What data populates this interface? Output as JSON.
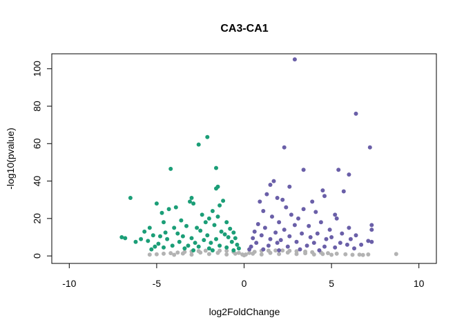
{
  "chart_data": {
    "type": "scatter",
    "title": "CA3-CA1",
    "xlabel": "log2FoldChange",
    "ylabel": "-log10(pvalue)",
    "xlim": [
      -11,
      11
    ],
    "ylim": [
      -4,
      108
    ],
    "xticks": [
      -10,
      -5,
      0,
      5,
      10
    ],
    "yticks": [
      0,
      20,
      40,
      60,
      80,
      100
    ],
    "grid": false,
    "legend": "none",
    "colors": {
      "down": "#1b9e77",
      "up": "#6a5fa8",
      "ns": "#b3b3b3"
    },
    "series": [
      {
        "group": "down",
        "points": [
          [
            -2.1,
            63.5
          ],
          [
            -2.6,
            59.5
          ],
          [
            -4.2,
            46.5
          ],
          [
            -1.6,
            47.0
          ],
          [
            -1.5,
            37.0
          ],
          [
            -1.6,
            36.0
          ],
          [
            -6.5,
            31.0
          ],
          [
            -3.0,
            31.0
          ],
          [
            -3.1,
            29.0
          ],
          [
            -2.9,
            28.0
          ],
          [
            -5.0,
            28.0
          ],
          [
            -3.9,
            26.0
          ],
          [
            -4.3,
            25.0
          ],
          [
            -4.7,
            23.0
          ],
          [
            -1.8,
            24.0
          ],
          [
            -1.2,
            29.5
          ],
          [
            -1.4,
            27.0
          ],
          [
            -2.4,
            22.0
          ],
          [
            -1.5,
            21.0
          ],
          [
            -2.0,
            20.0
          ],
          [
            -3.6,
            19.0
          ],
          [
            -4.6,
            18.0
          ],
          [
            -2.2,
            18.0
          ],
          [
            -3.3,
            16.0
          ],
          [
            -5.4,
            15.0
          ],
          [
            -4.0,
            15.0
          ],
          [
            -2.7,
            15.0
          ],
          [
            -1.0,
            18.0
          ],
          [
            -1.7,
            16.5
          ],
          [
            -0.8,
            14.5
          ],
          [
            -5.7,
            13.0
          ],
          [
            -4.5,
            12.5
          ],
          [
            -3.8,
            12.0
          ],
          [
            -2.5,
            13.5
          ],
          [
            -1.3,
            13.0
          ],
          [
            -0.6,
            12.5
          ],
          [
            -5.2,
            11.0
          ],
          [
            -4.8,
            10.5
          ],
          [
            -3.5,
            10.5
          ],
          [
            -2.1,
            11.0
          ],
          [
            -1.1,
            11.5
          ],
          [
            -0.9,
            10.0
          ],
          [
            -7.0,
            10.0
          ],
          [
            -6.8,
            9.5
          ],
          [
            -5.9,
            9.0
          ],
          [
            -6.2,
            7.5
          ],
          [
            -5.5,
            8.0
          ],
          [
            -4.4,
            9.0
          ],
          [
            -3.0,
            9.5
          ],
          [
            -2.3,
            8.5
          ],
          [
            -1.6,
            9.0
          ],
          [
            -0.5,
            9.5
          ],
          [
            -0.7,
            7.5
          ],
          [
            -1.9,
            7.0
          ],
          [
            -2.8,
            7.0
          ],
          [
            -3.7,
            7.5
          ],
          [
            -4.9,
            6.5
          ],
          [
            -5.1,
            5.0
          ],
          [
            -4.1,
            5.5
          ],
          [
            -3.2,
            5.5
          ],
          [
            -2.6,
            5.0
          ],
          [
            -1.4,
            5.5
          ],
          [
            -0.4,
            6.0
          ],
          [
            -0.3,
            4.0
          ],
          [
            -1.0,
            4.5
          ],
          [
            -2.0,
            4.0
          ],
          [
            -3.4,
            4.0
          ],
          [
            -4.6,
            4.5
          ],
          [
            -5.3,
            3.5
          ],
          [
            -0.6,
            3.0
          ],
          [
            -1.8,
            3.0
          ],
          [
            -2.9,
            3.0
          ]
        ]
      },
      {
        "group": "up",
        "points": [
          [
            2.9,
            105.0
          ],
          [
            6.4,
            76.0
          ],
          [
            7.2,
            58.0
          ],
          [
            2.3,
            58.0
          ],
          [
            3.4,
            46.0
          ],
          [
            5.4,
            46.0
          ],
          [
            6.0,
            43.5
          ],
          [
            1.7,
            40.0
          ],
          [
            1.5,
            38.0
          ],
          [
            2.6,
            37.0
          ],
          [
            4.5,
            35.0
          ],
          [
            5.7,
            34.5
          ],
          [
            1.3,
            33.0
          ],
          [
            4.6,
            32.0
          ],
          [
            1.9,
            31.0
          ],
          [
            2.2,
            30.0
          ],
          [
            3.9,
            29.0
          ],
          [
            0.9,
            29.0
          ],
          [
            2.4,
            26.0
          ],
          [
            3.4,
            25.0
          ],
          [
            1.1,
            24.0
          ],
          [
            4.1,
            23.5
          ],
          [
            2.7,
            22.0
          ],
          [
            5.2,
            22.0
          ],
          [
            1.6,
            21.0
          ],
          [
            3.1,
            20.0
          ],
          [
            5.3,
            20.0
          ],
          [
            2.0,
            18.0
          ],
          [
            4.4,
            18.0
          ],
          [
            0.8,
            17.0
          ],
          [
            2.9,
            16.5
          ],
          [
            3.7,
            16.0
          ],
          [
            7.3,
            16.5
          ],
          [
            6.0,
            15.0
          ],
          [
            1.2,
            15.0
          ],
          [
            2.3,
            14.0
          ],
          [
            4.9,
            14.0
          ],
          [
            7.3,
            14.0
          ],
          [
            0.6,
            13.0
          ],
          [
            1.8,
            12.5
          ],
          [
            3.3,
            12.0
          ],
          [
            4.2,
            12.0
          ],
          [
            5.6,
            12.0
          ],
          [
            6.4,
            11.0
          ],
          [
            1.0,
            11.0
          ],
          [
            2.6,
            10.5
          ],
          [
            3.8,
            10.0
          ],
          [
            5.0,
            10.0
          ],
          [
            0.5,
            9.5
          ],
          [
            1.5,
            9.0
          ],
          [
            2.1,
            8.5
          ],
          [
            4.7,
            9.0
          ],
          [
            6.1,
            9.0
          ],
          [
            7.1,
            8.0
          ],
          [
            7.3,
            7.5
          ],
          [
            0.7,
            7.0
          ],
          [
            1.9,
            7.0
          ],
          [
            3.0,
            7.5
          ],
          [
            4.0,
            7.0
          ],
          [
            5.5,
            7.0
          ],
          [
            5.9,
            6.0
          ],
          [
            6.7,
            6.0
          ],
          [
            0.4,
            5.0
          ],
          [
            1.4,
            5.5
          ],
          [
            2.5,
            5.0
          ],
          [
            3.6,
            5.5
          ],
          [
            4.6,
            5.0
          ],
          [
            5.2,
            4.5
          ],
          [
            6.3,
            4.0
          ],
          [
            0.3,
            3.5
          ],
          [
            1.1,
            3.5
          ],
          [
            2.0,
            3.0
          ],
          [
            3.2,
            3.5
          ],
          [
            4.3,
            3.0
          ]
        ]
      },
      {
        "group": "ns",
        "points": [
          [
            8.7,
            1.0
          ],
          [
            7.1,
            0.8
          ],
          [
            6.6,
            0.7
          ],
          [
            6.2,
            0.6
          ],
          [
            5.8,
            0.9
          ],
          [
            5.3,
            1.2
          ],
          [
            4.8,
            1.5
          ],
          [
            4.4,
            1.8
          ],
          [
            3.9,
            2.0
          ],
          [
            3.5,
            2.3
          ],
          [
            3.0,
            2.5
          ],
          [
            2.6,
            2.7
          ],
          [
            2.2,
            2.9
          ],
          [
            1.8,
            2.9
          ],
          [
            1.4,
            2.8
          ],
          [
            1.0,
            2.7
          ],
          [
            0.6,
            2.2
          ],
          [
            0.3,
            1.6
          ],
          [
            0.1,
            0.8
          ],
          [
            0.0,
            0.3
          ],
          [
            -0.1,
            0.8
          ],
          [
            -0.3,
            1.6
          ],
          [
            -0.6,
            2.2
          ],
          [
            -1.0,
            2.7
          ],
          [
            -1.4,
            2.8
          ],
          [
            -1.8,
            2.9
          ],
          [
            -2.2,
            2.8
          ],
          [
            -2.6,
            2.6
          ],
          [
            -3.0,
            2.4
          ],
          [
            -3.4,
            2.1
          ],
          [
            -3.8,
            1.8
          ],
          [
            -4.2,
            1.5
          ],
          [
            -4.6,
            1.2
          ],
          [
            -5.0,
            0.9
          ],
          [
            -5.4,
            0.7
          ],
          [
            -2.0,
            1.0
          ],
          [
            -1.0,
            0.8
          ],
          [
            1.0,
            0.8
          ],
          [
            2.0,
            1.0
          ],
          [
            3.0,
            1.0
          ],
          [
            4.0,
            0.8
          ],
          [
            5.0,
            0.6
          ],
          [
            -3.0,
            0.7
          ],
          [
            -4.0,
            0.6
          ],
          [
            0.5,
            1.2
          ],
          [
            -0.5,
            1.2
          ],
          [
            1.5,
            1.6
          ],
          [
            -1.5,
            1.6
          ],
          [
            2.5,
            1.8
          ],
          [
            -2.5,
            1.8
          ],
          [
            3.5,
            1.4
          ],
          [
            -3.5,
            1.3
          ],
          [
            4.5,
            1.0
          ],
          [
            6.8,
            0.5
          ]
        ]
      }
    ]
  }
}
